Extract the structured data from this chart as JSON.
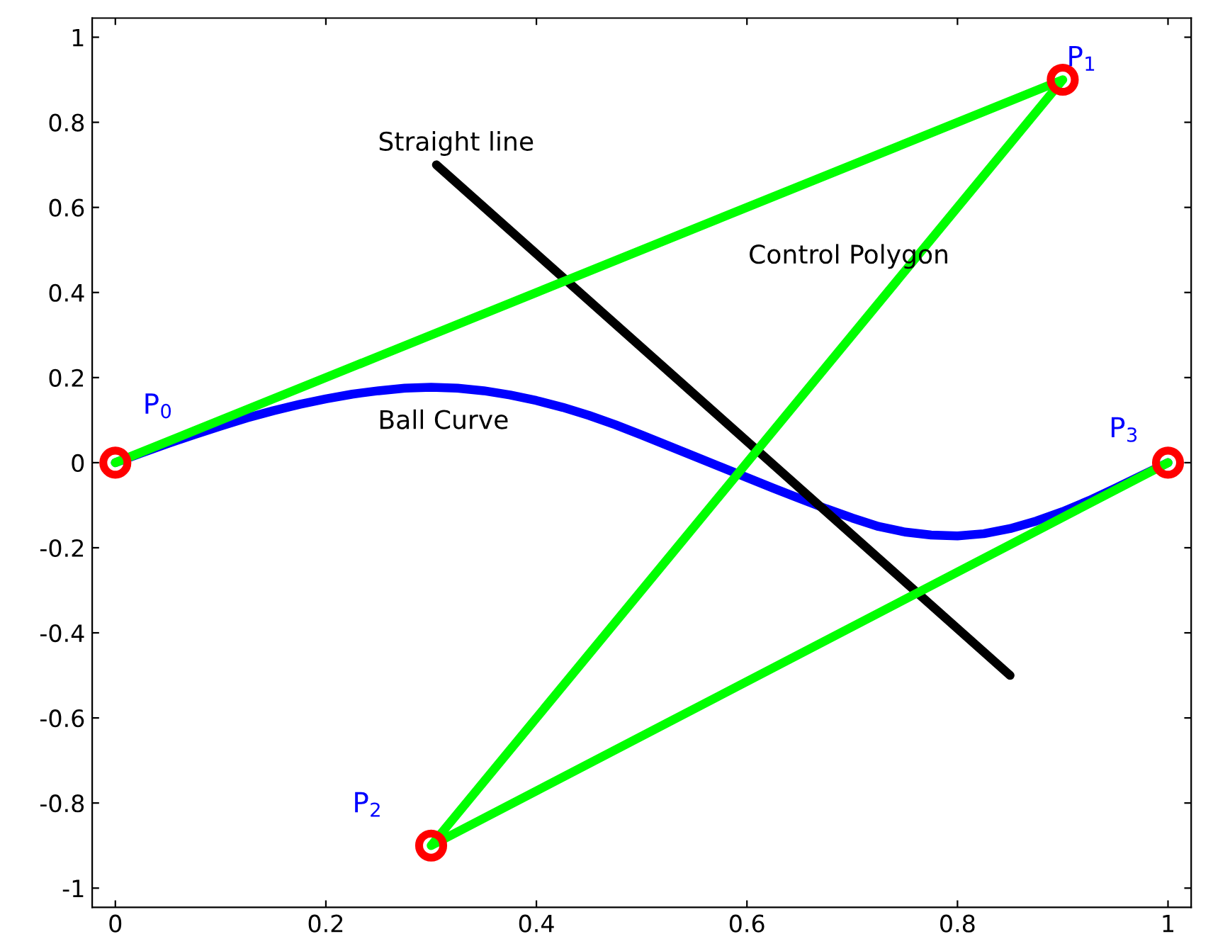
{
  "chart_data": {
    "type": "line",
    "xlim": [
      -0.022,
      1.022
    ],
    "ylim": [
      -1.045,
      1.045
    ],
    "xticks": [
      0,
      0.2,
      0.4,
      0.6,
      0.8,
      1
    ],
    "yticks": [
      -1,
      -0.8,
      -0.6,
      -0.4,
      -0.2,
      0,
      0.2,
      0.4,
      0.6,
      0.8,
      1
    ],
    "grid": false,
    "legend": false,
    "series": [
      {
        "type": "line",
        "color": "#0000ff",
        "marker": "none",
        "x": [
          0,
          0.025,
          0.05,
          0.075,
          0.1,
          0.125,
          0.15,
          0.175,
          0.2,
          0.225,
          0.25,
          0.275,
          0.3,
          0.325,
          0.35,
          0.375,
          0.4,
          0.425,
          0.45,
          0.475,
          0.5,
          0.525,
          0.55,
          0.575,
          0.6,
          0.625,
          0.65,
          0.675,
          0.7,
          0.725,
          0.75,
          0.775,
          0.8,
          0.825,
          0.85,
          0.875,
          0.9,
          0.925,
          0.95,
          0.975,
          1
        ],
        "values": [
          0,
          0.023,
          0.045,
          0.066,
          0.086,
          0.105,
          0.122,
          0.137,
          0.15,
          0.161,
          0.169,
          0.175,
          0.177,
          0.175,
          0.169,
          0.159,
          0.146,
          0.13,
          0.111,
          0.089,
          0.065,
          0.04,
          0.015,
          -0.01,
          -0.035,
          -0.06,
          -0.084,
          -0.108,
          -0.13,
          -0.15,
          -0.163,
          -0.17,
          -0.172,
          -0.167,
          -0.155,
          -0.137,
          -0.115,
          -0.089,
          -0.06,
          -0.03,
          0
        ]
      },
      {
        "type": "line",
        "color": "#000000",
        "marker": "none",
        "x": [
          0.305,
          0.85
        ],
        "values": [
          0.7,
          -0.5
        ]
      },
      {
        "type": "line",
        "color": "#00ff00",
        "marker": "none",
        "x": [
          0,
          0.9,
          0.3,
          1
        ],
        "values": [
          0,
          0.9,
          -0.9,
          0
        ]
      },
      {
        "type": "scatter",
        "color": "#ff0000",
        "marker": "circle",
        "x": [
          0,
          0.9,
          0.3,
          1
        ],
        "values": [
          0,
          0.9,
          -0.9,
          0
        ]
      }
    ],
    "annotations": [
      {
        "text": "P$_{0}$",
        "x": 0,
        "y": 0
      },
      {
        "text": "P$_{1}$",
        "x": 0.9,
        "y": 0.9
      },
      {
        "text": "P$_{2}$",
        "x": 0.3,
        "y": -0.9
      },
      {
        "text": "P$_{3}$",
        "x": 1,
        "y": 0
      },
      "Straight line",
      "Control Polygon",
      "Ball Curve"
    ]
  }
}
